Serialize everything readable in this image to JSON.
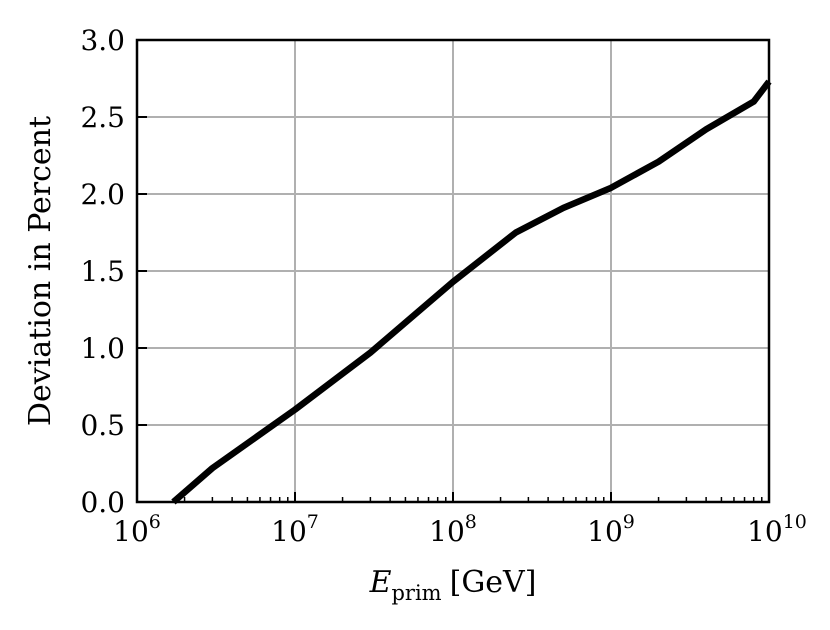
{
  "chart_data": {
    "type": "line",
    "title": "",
    "xlabel": {
      "main": "E",
      "sub": "prim",
      "unit": "[GeV]"
    },
    "ylabel": "Deviation in Percent",
    "xscale": "log",
    "xlim": [
      1000000,
      10000000000
    ],
    "ylim": [
      0.0,
      3.0
    ],
    "grid": true,
    "x_ticks": [
      {
        "value": 1000000,
        "base": "10",
        "exp": "6"
      },
      {
        "value": 10000000,
        "base": "10",
        "exp": "7"
      },
      {
        "value": 100000000,
        "base": "10",
        "exp": "8"
      },
      {
        "value": 1000000000,
        "base": "10",
        "exp": "9"
      },
      {
        "value": 10000000000,
        "base": "10",
        "exp": "10"
      }
    ],
    "y_ticks": [
      "0.0",
      "0.5",
      "1.0",
      "1.5",
      "2.0",
      "2.5",
      "3.0"
    ],
    "series": [
      {
        "color": "#000000",
        "x": [
          1700000,
          3000000,
          10000000,
          30000000,
          100000000,
          250000000,
          500000000,
          1000000000,
          2000000000,
          4000000000,
          8000000000,
          10000000000
        ],
        "y": [
          0.0,
          0.22,
          0.6,
          0.97,
          1.43,
          1.75,
          1.91,
          2.04,
          2.21,
          2.42,
          2.6,
          2.73
        ]
      }
    ]
  }
}
